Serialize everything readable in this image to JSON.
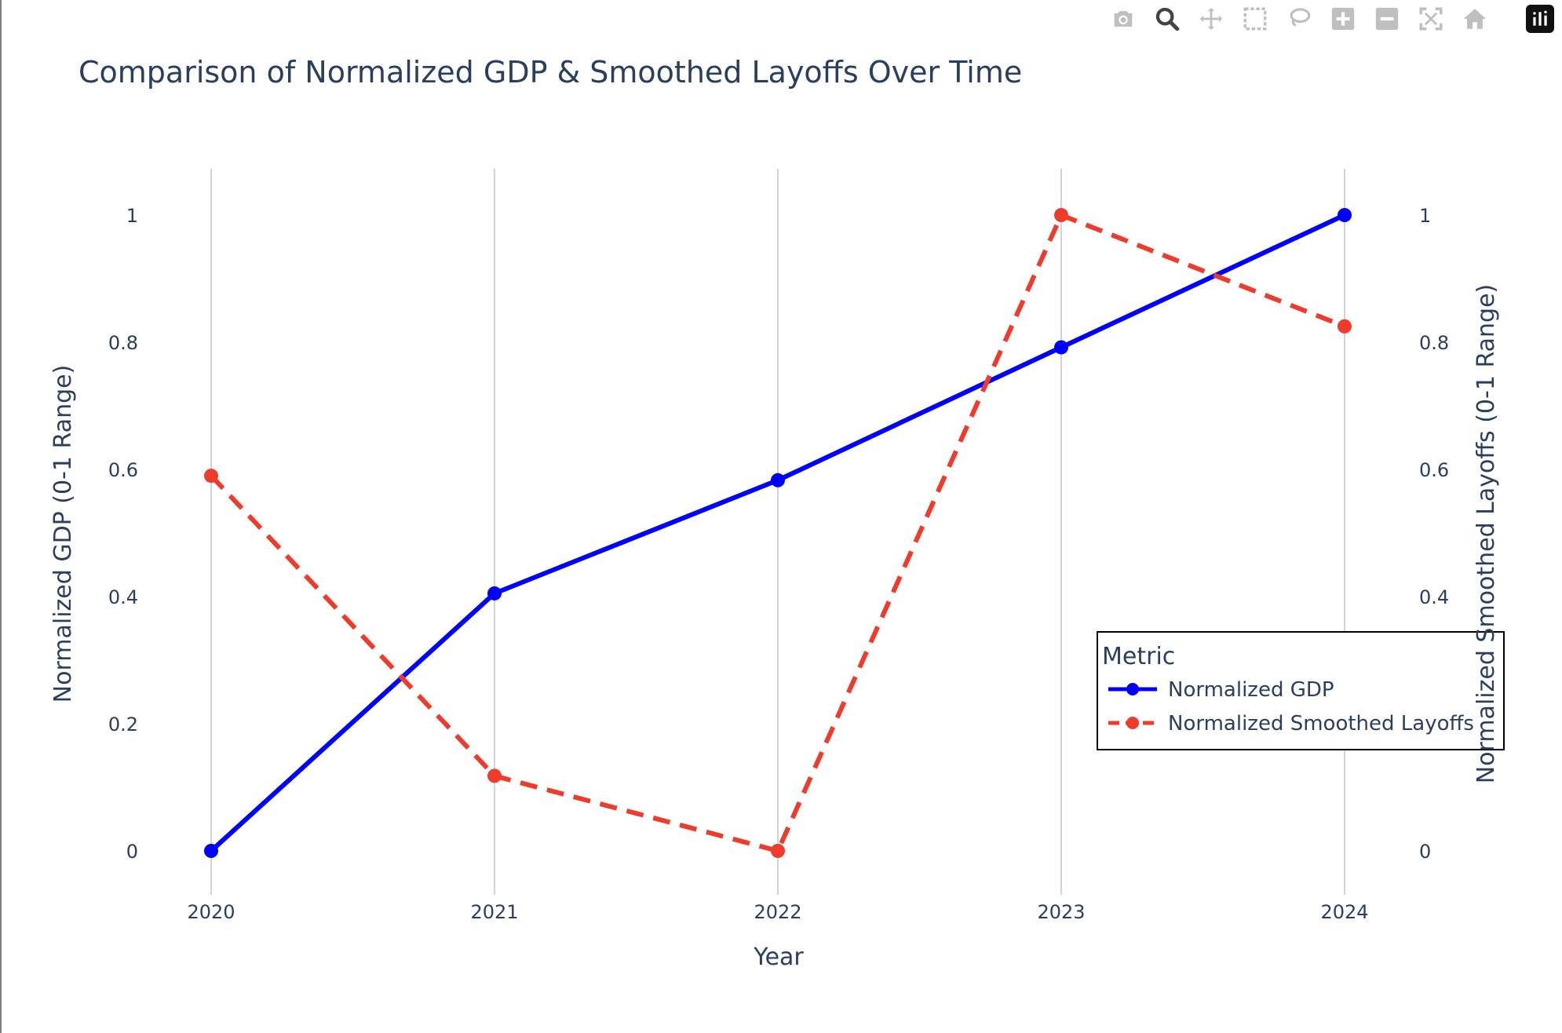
{
  "chart_data": {
    "type": "line",
    "title": "Comparison of Normalized GDP & Smoothed Layoffs Over Time",
    "xlabel": "Year",
    "ylabel": "Normalized GDP (0-1 Range)",
    "y2label": "Normalized Smoothed Layoffs (0-1 Range)",
    "x": [
      "2020",
      "2021",
      "2022",
      "2023",
      "2024"
    ],
    "ylim": [
      -0.07,
      1.07
    ],
    "y2lim": [
      -0.07,
      1.07
    ],
    "yticks": [
      "0",
      "0.2",
      "0.4",
      "0.6",
      "0.8",
      "1"
    ],
    "y2ticks": [
      "0",
      "0.2",
      "0.4",
      "0.6",
      "0.8",
      "1"
    ],
    "grid": "vertical",
    "legend": {
      "title": "Metric",
      "placement": "right, lower-middle"
    },
    "series": [
      {
        "name": "Normalized GDP",
        "axis": "y",
        "values": [
          0,
          0.405,
          0.583,
          0.792,
          1.0
        ],
        "color": "#0000ff",
        "dash": "solid"
      },
      {
        "name": "Normalized Smoothed Layoffs",
        "axis": "y2",
        "values": [
          0.59,
          0.118,
          0,
          1.0,
          0.825
        ],
        "color": "#ef3b2c",
        "dash": "dash"
      }
    ]
  },
  "modebar": {
    "buttons": [
      "camera-icon",
      "zoom-icon",
      "pan-icon",
      "box-select-icon",
      "lasso-select-icon",
      "zoom-in-icon",
      "zoom-out-icon",
      "autoscale-icon",
      "reset-axes-icon"
    ],
    "logo": "plotly-logo-icon"
  }
}
